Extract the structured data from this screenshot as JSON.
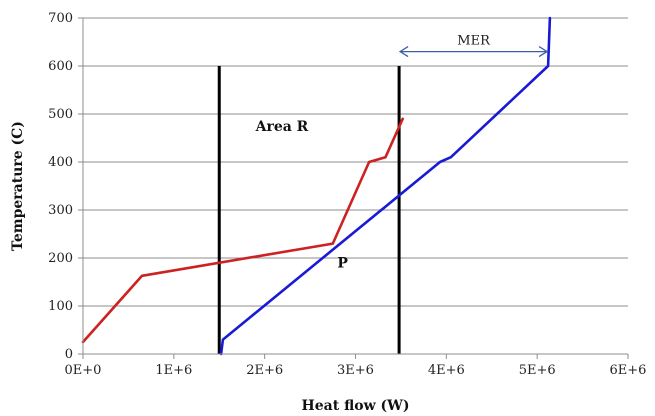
{
  "chart_data": {
    "type": "line",
    "xlabel": "Heat flow (W)",
    "ylabel": "Temperature (C)",
    "xlim": [
      0,
      6000000
    ],
    "ylim": [
      0,
      700
    ],
    "grid": "horizontal",
    "x_tick_values": [
      0,
      1000000,
      2000000,
      3000000,
      4000000,
      5000000,
      6000000
    ],
    "x_tick_labels": [
      "0E+0",
      "1E+6",
      "2E+6",
      "3E+6",
      "4E+6",
      "5E+6",
      "6E+6"
    ],
    "y_tick_values": [
      0,
      100,
      200,
      300,
      400,
      500,
      600,
      700
    ],
    "y_tick_labels": [
      "0",
      "100",
      "200",
      "300",
      "400",
      "500",
      "600",
      "700"
    ],
    "series": [
      {
        "color": "#cc2222",
        "points": [
          [
            0,
            25
          ],
          [
            650000,
            163
          ],
          [
            2750000,
            230
          ],
          [
            3150000,
            400
          ],
          [
            3330000,
            410
          ],
          [
            3520000,
            490
          ]
        ]
      },
      {
        "color": "#1a1ad6",
        "points": [
          [
            1520000,
            0
          ],
          [
            1540000,
            30
          ],
          [
            3930000,
            400
          ],
          [
            4050000,
            410
          ],
          [
            5120000,
            600
          ],
          [
            5140000,
            700
          ]
        ]
      }
    ],
    "vertical_lines": [
      {
        "x": 1500000,
        "y_range": [
          0,
          600
        ],
        "color": "#000000"
      },
      {
        "x": 3480000,
        "y_range": [
          0,
          600
        ],
        "color": "#000000"
      }
    ],
    "annotations": {
      "area_label": {
        "text": "Area R",
        "x": 1900000,
        "y": 465
      },
      "point_label": {
        "text": "P",
        "x": 2800000,
        "y": 180
      },
      "mer": {
        "text": "MER",
        "x_from": 3480000,
        "x_to": 5120000,
        "y": 630,
        "color": "#3a5fa8"
      }
    }
  }
}
